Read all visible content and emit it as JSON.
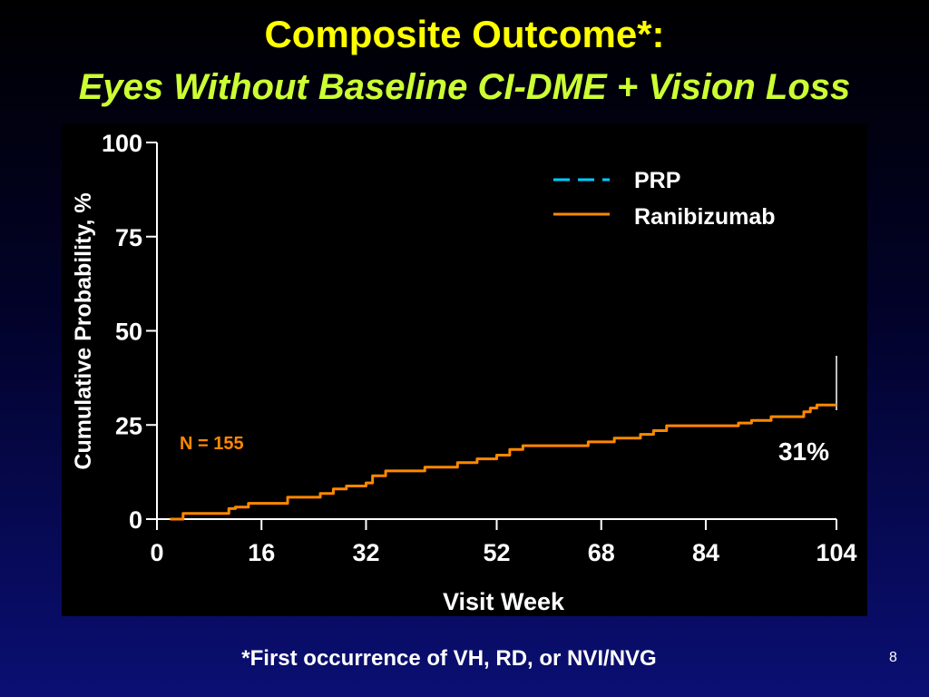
{
  "slide": {
    "title": "Composite Outcome*:",
    "subtitle": "Eyes Without Baseline CI-DME + Vision Loss",
    "footnote": "*First occurrence of VH, RD, or NVI/NVG",
    "page_number": "8"
  },
  "colors": {
    "title": "#ffff00",
    "subtitle": "#ccff33",
    "prp": "#00ccff",
    "ranibizumab": "#ff8800"
  },
  "chart_data": {
    "type": "line",
    "title": "",
    "xlabel": "Visit Week",
    "ylabel": "Cumulative Probability, %",
    "xlim": [
      0,
      104
    ],
    "ylim": [
      0,
      100
    ],
    "xticks": [
      0,
      16,
      32,
      52,
      68,
      84,
      104
    ],
    "yticks": [
      0,
      25,
      50,
      75,
      100
    ],
    "legend": {
      "placement": "top-right",
      "entries": [
        {
          "name": "PRP",
          "style": "dashed"
        },
        {
          "name": "Ranibizumab",
          "style": "solid"
        }
      ]
    },
    "annotations": {
      "n_label": "N = 155",
      "end_label": "31%"
    },
    "series": [
      {
        "name": "Ranibizumab",
        "step": true,
        "x": [
          2,
          4,
          9,
          11,
          12,
          14,
          20,
          25,
          27,
          29,
          32,
          33,
          35,
          41,
          46,
          49,
          52,
          54,
          56,
          66,
          70,
          74,
          76,
          78,
          89,
          91,
          94,
          99,
          100,
          101,
          104
        ],
        "y": [
          0,
          1.5,
          1.5,
          2.8,
          3.2,
          4.2,
          5.8,
          6.8,
          8,
          8.8,
          9.6,
          11.5,
          12.8,
          13.8,
          15,
          16,
          17,
          18.5,
          19.5,
          20.5,
          21.5,
          22.5,
          23.5,
          24.8,
          25.5,
          26.2,
          27.2,
          28.5,
          29.5,
          30.3,
          30.3
        ]
      }
    ]
  }
}
